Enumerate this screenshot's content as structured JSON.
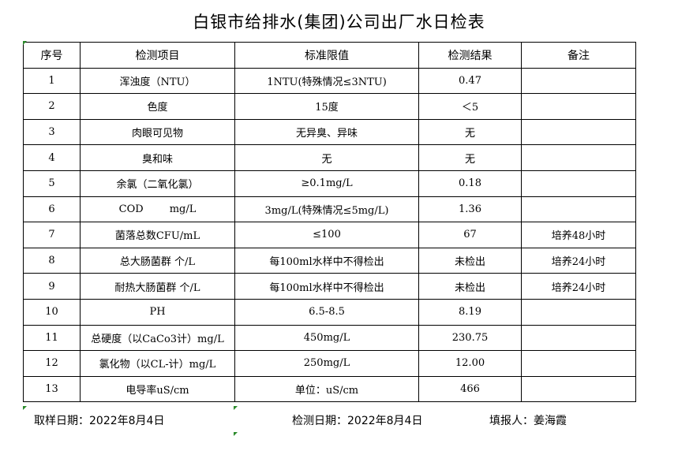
{
  "title": "白银市给排水(集团)公司出厂水日检表",
  "headers": [
    "序号",
    "检测项目",
    "标准限值",
    "检测结果",
    "备注"
  ],
  "rows": [
    [
      "1",
      "浑浊度（NTU）",
      "1NTU(特殊情况≤3NTU)",
      "0.47",
      ""
    ],
    [
      "2",
      "色度",
      "15度",
      "＜5",
      ""
    ],
    [
      "3",
      "肉眼可见物",
      "无异臭、异味",
      "无",
      ""
    ],
    [
      "4",
      "臭和味",
      "无",
      "无",
      ""
    ],
    [
      "5",
      "余氯（二氧化氯）",
      "≥0.1mg/L",
      "0.18",
      ""
    ],
    [
      "6",
      "COD        mg/L",
      "3mg/L(特殊情况≤5mg/L)",
      "1.36",
      ""
    ],
    [
      "7",
      "菌落总数CFU/mL",
      "≤100",
      "67",
      "培养48小时"
    ],
    [
      "8",
      "总大肠菌群 个/L",
      "每100ml水样中不得检出",
      "未检出",
      "培养24小时"
    ],
    [
      "9",
      "耐热大肠菌群 个/L",
      "每100ml水样中不得检出",
      "未检出",
      "培养24小时"
    ],
    [
      "10",
      "PH",
      "6.5-8.5",
      "8.19",
      ""
    ],
    [
      "11",
      "总硬度（以CaCo3计）mg/L",
      "450mg/L",
      "230.75",
      ""
    ],
    [
      "12",
      "氯化物（以CL-计）mg/L",
      "250mg/L",
      "12.00",
      ""
    ],
    [
      "13",
      "电导率uS/cm",
      "单位：uS/cm",
      "466",
      ""
    ]
  ],
  "footer": {
    "sampling_date": "取样日期：2022年8月4日",
    "test_date": "检测日期：2022年8月4日",
    "reporter": "填报人：姜海霞"
  }
}
